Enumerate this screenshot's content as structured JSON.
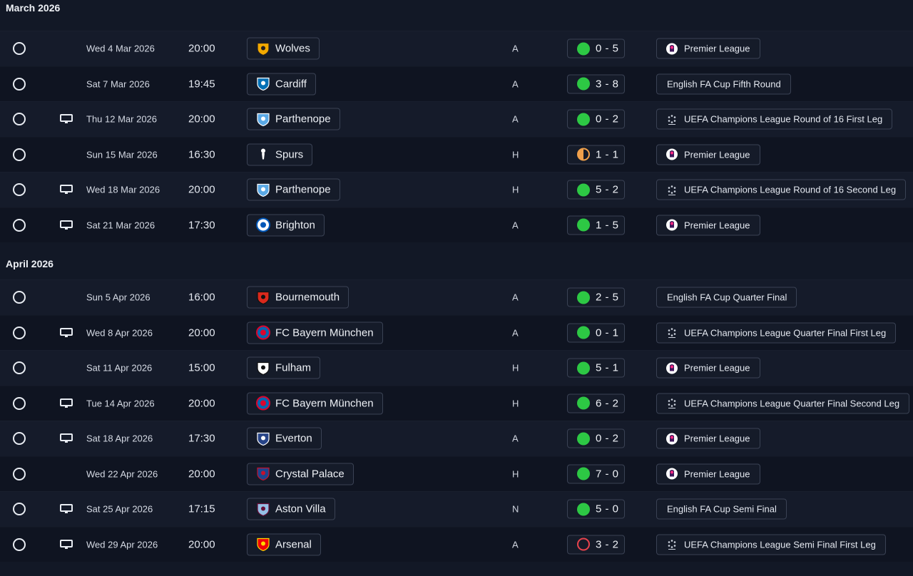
{
  "months": [
    {
      "label": "March 2026",
      "fixtures": [
        {
          "tv": false,
          "date": "Wed 4 Mar 2026",
          "time": "20:00",
          "team": "Wolves",
          "crest": "wolves",
          "venue": "A",
          "result": "win",
          "score": "0 - 5",
          "competition": "Premier League",
          "comp_icon": "pl"
        },
        {
          "tv": false,
          "date": "Sat 7 Mar 2026",
          "time": "19:45",
          "team": "Cardiff",
          "crest": "cardiff",
          "venue": "A",
          "result": "win",
          "score": "3 - 8",
          "competition": "English FA Cup Fifth Round",
          "comp_icon": ""
        },
        {
          "tv": true,
          "date": "Thu 12 Mar 2026",
          "time": "20:00",
          "team": "Parthenope",
          "crest": "parthenope",
          "venue": "A",
          "result": "win",
          "score": "0 - 2",
          "competition": "UEFA Champions League Round of 16  First Leg",
          "comp_icon": "ucl"
        },
        {
          "tv": false,
          "date": "Sun 15 Mar 2026",
          "time": "16:30",
          "team": "Spurs",
          "crest": "spurs",
          "venue": "H",
          "result": "draw",
          "score": "1 - 1",
          "competition": "Premier League",
          "comp_icon": "pl"
        },
        {
          "tv": true,
          "date": "Wed 18 Mar 2026",
          "time": "20:00",
          "team": "Parthenope",
          "crest": "parthenope",
          "venue": "H",
          "result": "win",
          "score": "5 - 2",
          "competition": "UEFA Champions League Round of 16  Second Leg",
          "comp_icon": "ucl"
        },
        {
          "tv": true,
          "date": "Sat 21 Mar 2026",
          "time": "17:30",
          "team": "Brighton",
          "crest": "brighton",
          "venue": "A",
          "result": "win",
          "score": "1 - 5",
          "competition": "Premier League",
          "comp_icon": "pl"
        }
      ]
    },
    {
      "label": "April 2026",
      "fixtures": [
        {
          "tv": false,
          "date": "Sun 5 Apr 2026",
          "time": "16:00",
          "team": "Bournemouth",
          "crest": "bournemouth",
          "venue": "A",
          "result": "win",
          "score": "2 - 5",
          "competition": "English FA Cup Quarter Final",
          "comp_icon": ""
        },
        {
          "tv": true,
          "date": "Wed 8 Apr 2026",
          "time": "20:00",
          "team": "FC Bayern München",
          "crest": "bayern",
          "venue": "A",
          "result": "win",
          "score": "0 - 1",
          "competition": "UEFA Champions League Quarter Final First Leg",
          "comp_icon": "ucl"
        },
        {
          "tv": false,
          "date": "Sat 11 Apr 2026",
          "time": "15:00",
          "team": "Fulham",
          "crest": "fulham",
          "venue": "H",
          "result": "win",
          "score": "5 - 1",
          "competition": "Premier League",
          "comp_icon": "pl"
        },
        {
          "tv": true,
          "date": "Tue 14 Apr 2026",
          "time": "20:00",
          "team": "FC Bayern München",
          "crest": "bayern",
          "venue": "H",
          "result": "win",
          "score": "6 - 2",
          "competition": "UEFA Champions League Quarter Final Second Leg",
          "comp_icon": "ucl"
        },
        {
          "tv": true,
          "date": "Sat 18 Apr 2026",
          "time": "17:30",
          "team": "Everton",
          "crest": "everton",
          "venue": "A",
          "result": "win",
          "score": "0 - 2",
          "competition": "Premier League",
          "comp_icon": "pl"
        },
        {
          "tv": false,
          "date": "Wed 22 Apr 2026",
          "time": "20:00",
          "team": "Crystal Palace",
          "crest": "palace",
          "venue": "H",
          "result": "win",
          "score": "7 - 0",
          "competition": "Premier League",
          "comp_icon": "pl"
        },
        {
          "tv": true,
          "date": "Sat 25 Apr 2026",
          "time": "17:15",
          "team": "Aston Villa",
          "crest": "villa",
          "venue": "N",
          "result": "win",
          "score": "5 - 0",
          "competition": "English FA Cup Semi Final",
          "comp_icon": ""
        },
        {
          "tv": true,
          "date": "Wed 29 Apr 2026",
          "time": "20:00",
          "team": "Arsenal",
          "crest": "arsenal",
          "venue": "A",
          "result": "loss",
          "score": "3 - 2",
          "competition": "UEFA Champions League Semi Final First Leg",
          "comp_icon": "ucl"
        }
      ]
    }
  ],
  "colors": {
    "win": "#2dc844",
    "draw": "#f0a04b",
    "loss": "#e8434d",
    "background": "#121826"
  }
}
